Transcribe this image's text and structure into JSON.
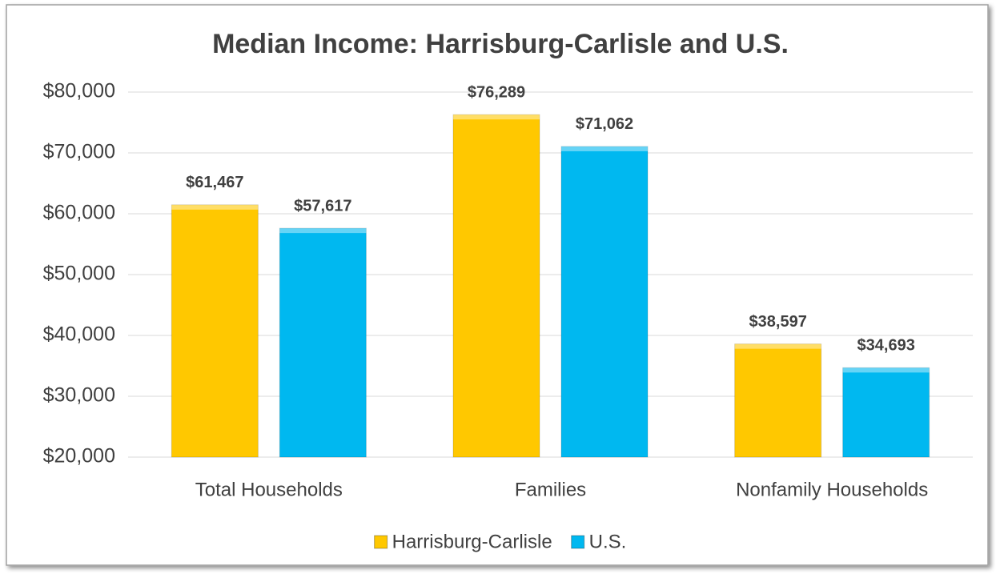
{
  "chart_data": {
    "type": "bar",
    "title": "Median Income: Harrisburg-Carlisle and U.S.",
    "categories": [
      "Total Households",
      "Families",
      "Nonfamily Households"
    ],
    "series": [
      {
        "name": "Harrisburg-Carlisle",
        "color": "#ffc800",
        "values": [
          61467,
          76289,
          38597
        ],
        "value_labels": [
          "$61,467",
          "$76,289",
          "$38,597"
        ]
      },
      {
        "name": "U.S.",
        "color": "#00b8f0",
        "values": [
          57617,
          71062,
          34693
        ],
        "value_labels": [
          "$57,617",
          "$71,062",
          "$34,693"
        ]
      }
    ],
    "ylim": [
      20000,
      80000
    ],
    "yticks": [
      {
        "value": 20000,
        "label": "$20,000"
      },
      {
        "value": 30000,
        "label": "$30,000"
      },
      {
        "value": 40000,
        "label": "$40,000"
      },
      {
        "value": 50000,
        "label": "$50,000"
      },
      {
        "value": 60000,
        "label": "$60,000"
      },
      {
        "value": 70000,
        "label": "$70,000"
      },
      {
        "value": 80000,
        "label": "$80,000"
      }
    ],
    "grid": true,
    "legend": "bottom"
  }
}
